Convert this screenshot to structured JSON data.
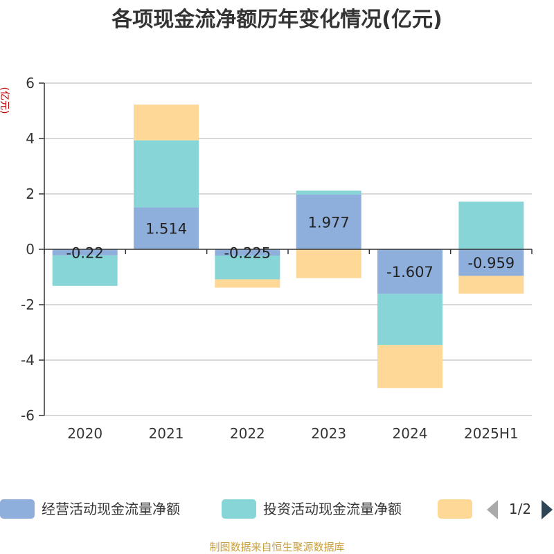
{
  "chart_data": {
    "type": "bar",
    "stacked": true,
    "title": "各项现金流净额历年变化情况(亿元)",
    "ylabel": "(亿元)",
    "xlabel": "",
    "categories": [
      "2020",
      "2021",
      "2022",
      "2023",
      "2024",
      "2025H1"
    ],
    "ylim": [
      -6,
      6
    ],
    "yticks": [
      -6,
      -4,
      -2,
      0,
      2,
      4,
      6
    ],
    "grid": true,
    "legend_position": "bottom",
    "series": [
      {
        "name": "经营活动现金流量净额",
        "color": "#8eaedb",
        "values": [
          -0.22,
          1.514,
          -0.225,
          1.977,
          -1.607,
          -0.959
        ],
        "labels": [
          "-0.22",
          "1.514",
          "-0.225",
          "1.977",
          "-1.607",
          "-0.959"
        ]
      },
      {
        "name": "投资活动现金流量净额",
        "color": "#88d5d8",
        "values": [
          -1.1,
          2.42,
          -0.86,
          0.14,
          -1.85,
          1.72
        ]
      },
      {
        "name": "",
        "color": "#fed896",
        "values": [
          0.0,
          1.29,
          -0.3,
          -1.04,
          -1.55,
          -0.64
        ]
      }
    ]
  },
  "legend": {
    "page": "1/2"
  },
  "footer": {
    "source": "制图数据来自恒生聚源数据库"
  },
  "colors": {
    "axis": "#333333",
    "grid": "#cccccc",
    "pager_inactive": "#aaaaaa",
    "pager_active": "#2f4554"
  }
}
